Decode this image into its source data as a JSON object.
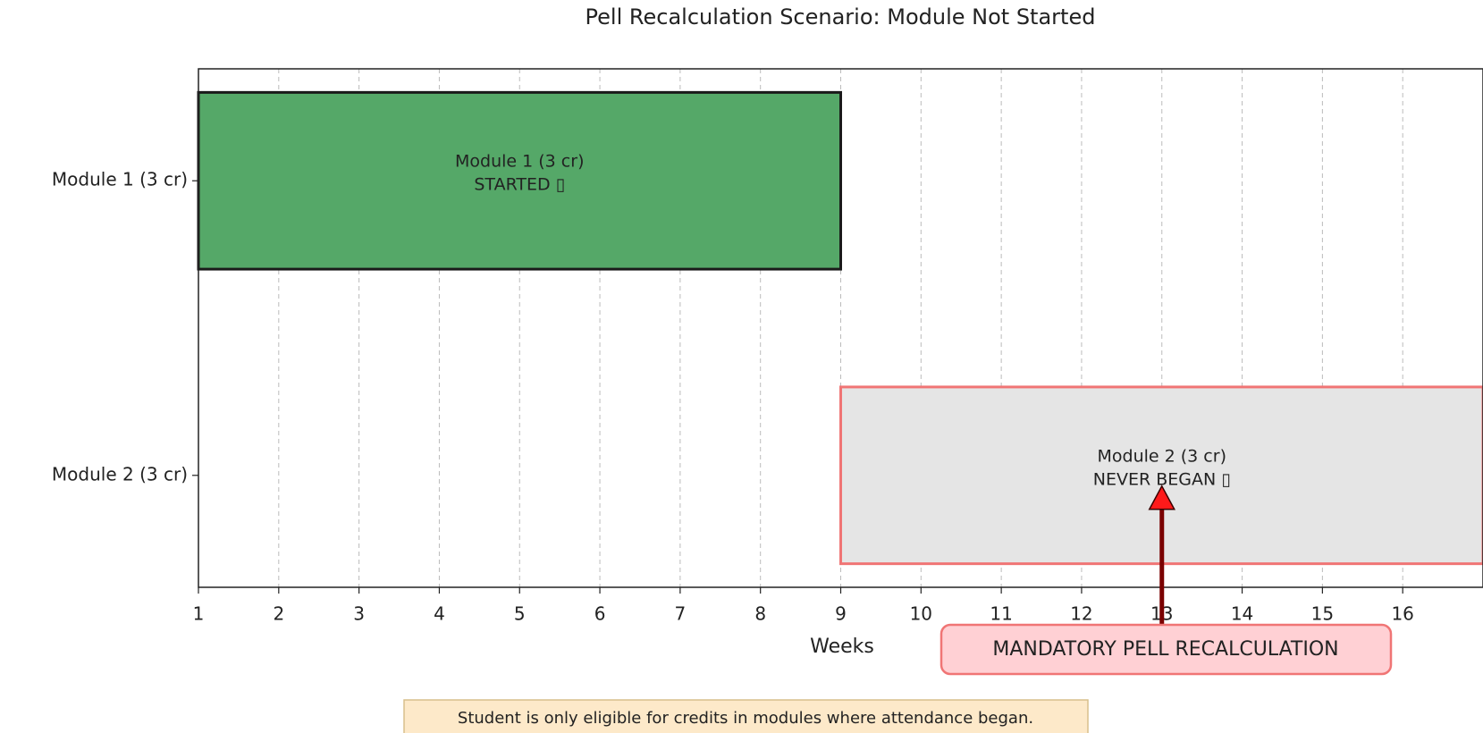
{
  "chart_data": {
    "type": "gantt",
    "title": "Pell Recalculation Scenario: Module Not Started",
    "xlabel": "Weeks",
    "categories": [
      "Module 1 (3 cr)",
      "Module 2 (3 cr)"
    ],
    "starts": [
      1,
      9
    ],
    "ends": [
      9,
      17
    ],
    "bar_labels": [
      [
        "Module 1 (3 cr)",
        "STARTED ▯"
      ],
      [
        "Module 2 (3 cr)",
        "NEVER BEGAN ▯"
      ]
    ],
    "colors": [
      "#55a868",
      "#e5e5e5"
    ],
    "edgecolors": [
      "#1a1a1a",
      "#f07575"
    ],
    "label_colors": [
      "#ffffff",
      "#ff3333"
    ],
    "xlim": [
      1,
      17
    ],
    "xticks": [
      1,
      2,
      3,
      4,
      5,
      6,
      7,
      8,
      9,
      10,
      11,
      12,
      13,
      14,
      15,
      16
    ],
    "grid": true,
    "annotation": {
      "text": "MANDATORY PELL RECALCULATION",
      "x": 13
    },
    "footnote": "Student is only eligible for credits in modules where attendance began."
  }
}
